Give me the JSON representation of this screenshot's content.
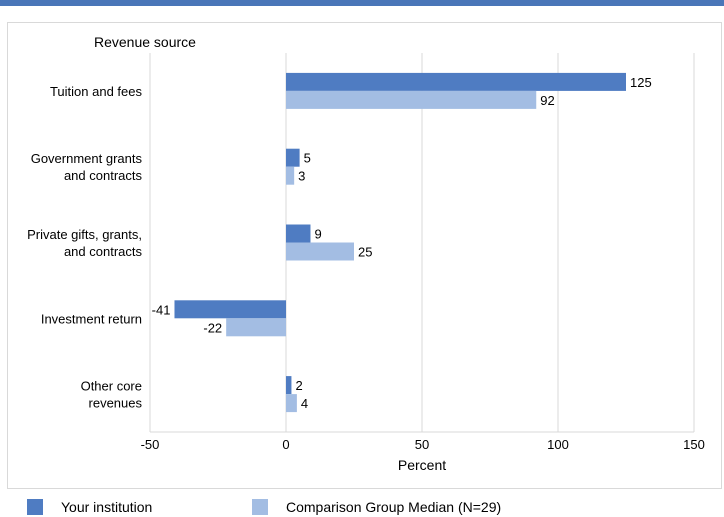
{
  "colors": {
    "top_bar": "#4a76b8",
    "series_primary": "#4f7cc2",
    "series_comparison": "#a3bde3",
    "grid": "#d9d9d9"
  },
  "chart_data": {
    "type": "bar",
    "orientation": "horizontal",
    "title": "Revenue source",
    "xlabel": "Percent",
    "ylabel": "",
    "xlim": [
      -50,
      150
    ],
    "xticks": [
      -50,
      0,
      50,
      100,
      150
    ],
    "grid": true,
    "legend_position": "bottom",
    "categories": [
      [
        "Tuition and fees"
      ],
      [
        "Government grants",
        "and contracts"
      ],
      [
        "Private gifts, grants,",
        "and contracts"
      ],
      [
        "Investment return"
      ],
      [
        "Other core",
        "revenues"
      ]
    ],
    "series": [
      {
        "name": "Your institution",
        "values": [
          125,
          5,
          9,
          -41,
          2
        ]
      },
      {
        "name": "Comparison Group Median (N=29)",
        "values": [
          92,
          3,
          25,
          -22,
          4
        ]
      }
    ]
  }
}
